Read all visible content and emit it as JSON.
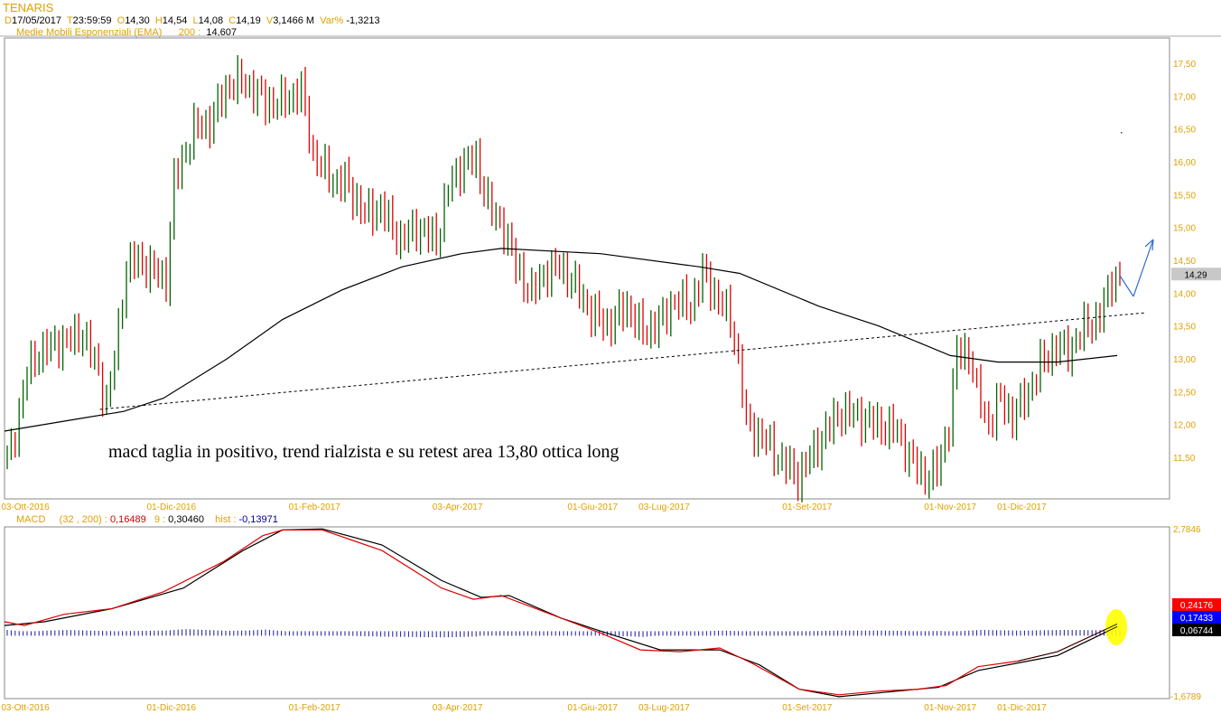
{
  "header": {
    "symbol": "TENARIS",
    "d_label": "D",
    "date": "17/05/2017",
    "t_label": "T",
    "time": "23:59:59",
    "o_label": "O",
    "open": "14,30",
    "h_label": "H",
    "high": "14,54",
    "l_label": "L",
    "low": "14,08",
    "c_label": "C",
    "close": "14,19",
    "v_label": "V",
    "volume": "3,1466 M",
    "var_label": "Var%",
    "var": "-1,3213",
    "ema_label": "Medie Mobili Esponenziali (EMA)",
    "ema_period": "200 :",
    "ema_value": "14,607"
  },
  "macd_header": {
    "label": "MACD",
    "params": "(32 , 200) :",
    "macd": "0,16489",
    "signal_label": "9 :",
    "signal": "0,30460",
    "hist_label": "hist :",
    "hist": "-0,13971"
  },
  "annotation": "macd taglia in positivo, trend rialzista e su retest area 13,80 ottica long",
  "chart_data": [
    {
      "type": "candlestick",
      "title": "TENARIS",
      "ylim": [
        11.0,
        17.8
      ],
      "y_ticks": [
        "17,50",
        "17,00",
        "16,50",
        "16,00",
        "15,50",
        "15,00",
        "14,50",
        "14,00",
        "13,50",
        "13,00",
        "12,50",
        "12,00",
        "11,50"
      ],
      "y_tick_values": [
        17.5,
        17,
        16.5,
        16,
        15.5,
        15,
        14.5,
        14,
        13.5,
        13,
        12.5,
        12,
        11.5
      ],
      "x_ticks": [
        {
          "label": "03-Ott-2016",
          "day": 0
        },
        {
          "label": "01-Dic-2016",
          "day": 42
        },
        {
          "label": "01-Feb-2017",
          "day": 78
        },
        {
          "label": "03-Apr-2017",
          "day": 114
        },
        {
          "label": "01-Giu-2017",
          "day": 148
        },
        {
          "label": "03-Lug-2017",
          "day": 166
        },
        {
          "label": "01-Set-2017",
          "day": 202
        },
        {
          "label": "01-Nov-2017",
          "day": 238
        },
        {
          "label": "01-Dic-2017",
          "day": 256
        }
      ],
      "close_path": [
        [
          0,
          11.5
        ],
        [
          1,
          11.6
        ],
        [
          5,
          12.8
        ],
        [
          8,
          13.1
        ],
        [
          11,
          13.2
        ],
        [
          16,
          13.3
        ],
        [
          19,
          13.4
        ],
        [
          23,
          12.8
        ],
        [
          25,
          12.3
        ],
        [
          27,
          13.0
        ],
        [
          30,
          14.4
        ],
        [
          33,
          14.5
        ],
        [
          40,
          14.2
        ],
        [
          42,
          15.7
        ],
        [
          47,
          16.5
        ],
        [
          51,
          16.6
        ],
        [
          56,
          17.2
        ],
        [
          60,
          17.2
        ],
        [
          65,
          16.9
        ],
        [
          69,
          16.9
        ],
        [
          74,
          17.1
        ],
        [
          77,
          16.1
        ],
        [
          82,
          15.7
        ],
        [
          85,
          15.7
        ],
        [
          90,
          15.2
        ],
        [
          94,
          15.3
        ],
        [
          99,
          14.8
        ],
        [
          103,
          15.0
        ],
        [
          108,
          14.8
        ],
        [
          111,
          15.6
        ],
        [
          115,
          16.0
        ],
        [
          118,
          16.0
        ],
        [
          122,
          15.2
        ],
        [
          125,
          15.0
        ],
        [
          128,
          14.4
        ],
        [
          132,
          14.0
        ],
        [
          135,
          14.3
        ],
        [
          139,
          14.4
        ],
        [
          142,
          14.2
        ],
        [
          147,
          13.7
        ],
        [
          151,
          13.5
        ],
        [
          156,
          13.8
        ],
        [
          160,
          13.4
        ],
        [
          165,
          13.6
        ],
        [
          168,
          13.9
        ],
        [
          172,
          13.8
        ],
        [
          175,
          14.3
        ],
        [
          178,
          14.0
        ],
        [
          182,
          13.6
        ],
        [
          184,
          13.0
        ],
        [
          186,
          12.0
        ],
        [
          190,
          11.8
        ],
        [
          194,
          11.5
        ],
        [
          199,
          11.2
        ],
        [
          202,
          11.5
        ],
        [
          206,
          11.9
        ],
        [
          210,
          12.2
        ],
        [
          215,
          12.1
        ],
        [
          219,
          12.0
        ],
        [
          224,
          11.9
        ],
        [
          227,
          11.5
        ],
        [
          231,
          11.2
        ],
        [
          234,
          11.3
        ],
        [
          237,
          12.0
        ],
        [
          239,
          13.1
        ],
        [
          242,
          13.1
        ],
        [
          244,
          12.5
        ],
        [
          247,
          12.0
        ],
        [
          250,
          12.4
        ],
        [
          253,
          12.1
        ],
        [
          257,
          12.5
        ],
        [
          260,
          12.9
        ],
        [
          264,
          13.2
        ],
        [
          267,
          13.1
        ],
        [
          270,
          13.4
        ],
        [
          274,
          13.6
        ],
        [
          276,
          13.8
        ],
        [
          278,
          14.2
        ],
        [
          280,
          14.29
        ]
      ],
      "ema200": [
        [
          0,
          11.9
        ],
        [
          20,
          12.1
        ],
        [
          30,
          12.2
        ],
        [
          40,
          12.4
        ],
        [
          56,
          13.0
        ],
        [
          70,
          13.6
        ],
        [
          85,
          14.05
        ],
        [
          100,
          14.4
        ],
        [
          115,
          14.6
        ],
        [
          125,
          14.68
        ],
        [
          150,
          14.6
        ],
        [
          175,
          14.4
        ],
        [
          185,
          14.3
        ],
        [
          205,
          13.8
        ],
        [
          220,
          13.5
        ],
        [
          238,
          13.05
        ],
        [
          250,
          12.95
        ],
        [
          265,
          12.95
        ],
        [
          280,
          13.05
        ]
      ],
      "trendline": [
        [
          24,
          12.23
        ],
        [
          287,
          13.7
        ]
      ],
      "last_price": "14,29",
      "last_price_value": 14.29
    },
    {
      "type": "line",
      "title": "MACD",
      "ylim": [
        -1.6789,
        2.7846
      ],
      "y_ticks": [
        "2,7846",
        "-1,6789"
      ],
      "right_labels": [
        {
          "text": "0,24176",
          "color": "#ff0000"
        },
        {
          "text": "0,17433",
          "color": "#0000ff"
        },
        {
          "text": "0,06744",
          "color": "#000000"
        }
      ],
      "macd": [
        [
          0,
          0.3
        ],
        [
          5,
          0.2
        ],
        [
          15,
          0.5
        ],
        [
          27,
          0.65
        ],
        [
          40,
          1.1
        ],
        [
          55,
          1.9
        ],
        [
          65,
          2.6
        ],
        [
          70,
          2.75
        ],
        [
          80,
          2.75
        ],
        [
          95,
          2.2
        ],
        [
          110,
          1.2
        ],
        [
          118,
          0.9
        ],
        [
          125,
          1.0
        ],
        [
          135,
          0.6
        ],
        [
          150,
          0.0
        ],
        [
          160,
          -0.45
        ],
        [
          170,
          -0.5
        ],
        [
          180,
          -0.4
        ],
        [
          188,
          -0.8
        ],
        [
          200,
          -1.5
        ],
        [
          210,
          -1.65
        ],
        [
          220,
          -1.55
        ],
        [
          230,
          -1.5
        ],
        [
          237,
          -1.4
        ],
        [
          245,
          -0.9
        ],
        [
          255,
          -0.75
        ],
        [
          265,
          -0.5
        ],
        [
          280,
          0.24
        ]
      ],
      "signal": [
        [
          0,
          0.2
        ],
        [
          10,
          0.3
        ],
        [
          27,
          0.65
        ],
        [
          45,
          1.2
        ],
        [
          60,
          2.2
        ],
        [
          70,
          2.75
        ],
        [
          80,
          2.78
        ],
        [
          95,
          2.35
        ],
        [
          110,
          1.4
        ],
        [
          120,
          0.95
        ],
        [
          127,
          1.0
        ],
        [
          140,
          0.4
        ],
        [
          150,
          0.05
        ],
        [
          165,
          -0.45
        ],
        [
          180,
          -0.45
        ],
        [
          190,
          -0.85
        ],
        [
          200,
          -1.5
        ],
        [
          210,
          -1.7
        ],
        [
          220,
          -1.6
        ],
        [
          235,
          -1.45
        ],
        [
          245,
          -1.0
        ],
        [
          255,
          -0.8
        ],
        [
          265,
          -0.6
        ],
        [
          280,
          0.17
        ]
      ]
    }
  ],
  "colors": {
    "up": "#006400",
    "down": "#e00000",
    "axis": "#e0a000",
    "arrow": "#3070d0",
    "highlight": "#ffff00"
  }
}
